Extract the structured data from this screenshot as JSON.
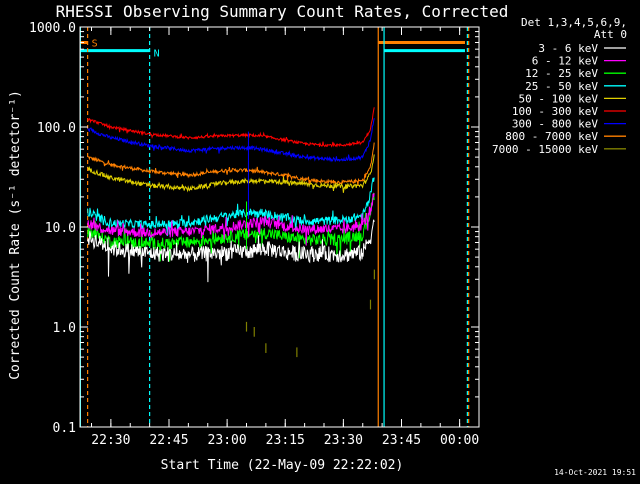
{
  "chart_data": {
    "type": "line",
    "title": "RHESSI Observing Summary Count Rates, Corrected",
    "xlabel": "Start Time (22-May-09 22:22:02)",
    "ylabel": "Corrected Count Rate (s⁻¹ detector⁻¹)",
    "y_scale": "log",
    "ylim": [
      0.1,
      1000
    ],
    "xlim": [
      "22:22:02",
      "00:05:00"
    ],
    "y_tick_labels": [
      "0.1",
      "1.0",
      "10.0",
      "100.0",
      "1000.0"
    ],
    "x_tick_labels": [
      "22:30",
      "22:45",
      "23:00",
      "23:15",
      "23:30",
      "23:45",
      "00:00"
    ],
    "grid": false,
    "legend_position": "right",
    "legend_header": [
      "Det 1,3,4,5,6,9,",
      "Att 0"
    ],
    "timestamp": "14-Oct-2021 19:51",
    "flag_labels": {
      "saa": "S",
      "night": "N"
    },
    "series": [
      {
        "name": "3 - 6 keV",
        "color": "#ffffff",
        "points": [
          [
            "22:24:00",
            8
          ],
          [
            "22:30:00",
            6.2
          ],
          [
            "22:40:00",
            5.5
          ],
          [
            "22:50:00",
            5.3
          ],
          [
            "22:55:00",
            5.5
          ],
          [
            "23:00:00",
            5.6
          ],
          [
            "23:06:00",
            5.8
          ],
          [
            "23:10:00",
            6.2
          ],
          [
            "23:15:00",
            5.6
          ],
          [
            "23:20:00",
            5.4
          ],
          [
            "23:25:00",
            5.5
          ],
          [
            "23:30:00",
            5.3
          ],
          [
            "23:35:00",
            5.6
          ],
          [
            "23:37:00",
            8
          ],
          [
            "23:38:00",
            12
          ]
        ]
      },
      {
        "name": "6 - 12 keV",
        "color": "#ff00ff",
        "points": [
          [
            "22:24:00",
            11
          ],
          [
            "22:30:00",
            9.2
          ],
          [
            "22:40:00",
            8.8
          ],
          [
            "22:50:00",
            9.0
          ],
          [
            "22:55:00",
            9.5
          ],
          [
            "23:00:00",
            10
          ],
          [
            "23:06:00",
            11
          ],
          [
            "23:10:00",
            11.5
          ],
          [
            "23:15:00",
            10.2
          ],
          [
            "23:20:00",
            9.5
          ],
          [
            "23:25:00",
            9.6
          ],
          [
            "23:30:00",
            9.5
          ],
          [
            "23:35:00",
            10.5
          ],
          [
            "23:37:00",
            15
          ],
          [
            "23:38:00",
            22
          ]
        ]
      },
      {
        "name": "12 - 25 keV",
        "color": "#00ff00",
        "points": [
          [
            "22:24:00",
            9
          ],
          [
            "22:30:00",
            7.2
          ],
          [
            "22:40:00",
            6.8
          ],
          [
            "22:50:00",
            7.0
          ],
          [
            "22:55:00",
            7.5
          ],
          [
            "23:00:00",
            8
          ],
          [
            "23:06:00",
            8.5
          ],
          [
            "23:10:00",
            8.8
          ],
          [
            "23:15:00",
            8.0
          ],
          [
            "23:20:00",
            7.5
          ],
          [
            "23:25:00",
            7.5
          ],
          [
            "23:30:00",
            7.6
          ],
          [
            "23:35:00",
            8.5
          ],
          [
            "23:37:00",
            14
          ],
          [
            "23:38:00",
            22
          ]
        ]
      },
      {
        "name": "25 - 50 keV",
        "color": "#00ffff",
        "points": [
          [
            "22:24:00",
            14
          ],
          [
            "22:30:00",
            11
          ],
          [
            "22:40:00",
            10.5
          ],
          [
            "22:50:00",
            11
          ],
          [
            "22:55:00",
            12
          ],
          [
            "23:00:00",
            13
          ],
          [
            "23:06:00",
            14
          ],
          [
            "23:10:00",
            13.5
          ],
          [
            "23:15:00",
            12.5
          ],
          [
            "23:20:00",
            11.5
          ],
          [
            "23:25:00",
            11.5
          ],
          [
            "23:30:00",
            11.8
          ],
          [
            "23:35:00",
            13
          ],
          [
            "23:37:00",
            20
          ],
          [
            "23:38:00",
            35
          ]
        ]
      },
      {
        "name": "50 - 100 keV",
        "color": "#e0d000",
        "points": [
          [
            "22:24:00",
            38
          ],
          [
            "22:30:00",
            31
          ],
          [
            "22:40:00",
            26
          ],
          [
            "22:50:00",
            24
          ],
          [
            "22:55:00",
            26
          ],
          [
            "23:00:00",
            28
          ],
          [
            "23:06:00",
            29
          ],
          [
            "23:10:00",
            29
          ],
          [
            "23:15:00",
            28
          ],
          [
            "23:20:00",
            27
          ],
          [
            "23:25:00",
            26
          ],
          [
            "23:30:00",
            25.5
          ],
          [
            "23:35:00",
            26
          ],
          [
            "23:37:00",
            34
          ],
          [
            "23:38:00",
            55
          ]
        ]
      },
      {
        "name": "100 - 300 keV",
        "color": "#ff0000",
        "points": [
          [
            "22:24:00",
            120
          ],
          [
            "22:30:00",
            100
          ],
          [
            "22:40:00",
            85
          ],
          [
            "22:50:00",
            78
          ],
          [
            "22:55:00",
            80
          ],
          [
            "23:00:00",
            82
          ],
          [
            "23:06:00",
            83
          ],
          [
            "23:10:00",
            80
          ],
          [
            "23:15:00",
            74
          ],
          [
            "23:20:00",
            68
          ],
          [
            "23:25:00",
            66
          ],
          [
            "23:30:00",
            66
          ],
          [
            "23:35:00",
            70
          ],
          [
            "23:37:00",
            95
          ],
          [
            "23:38:00",
            160
          ]
        ]
      },
      {
        "name": "300 - 800 keV",
        "color": "#0000ff",
        "points": [
          [
            "22:24:00",
            95
          ],
          [
            "22:30:00",
            78
          ],
          [
            "22:40:00",
            65
          ],
          [
            "22:50:00",
            58
          ],
          [
            "22:55:00",
            60
          ],
          [
            "23:00:00",
            62
          ],
          [
            "23:06:00",
            62
          ],
          [
            "23:10:00",
            59
          ],
          [
            "23:15:00",
            54
          ],
          [
            "23:20:00",
            50
          ],
          [
            "23:25:00",
            48
          ],
          [
            "23:30:00",
            47
          ],
          [
            "23:35:00",
            50
          ],
          [
            "23:37:00",
            75
          ],
          [
            "23:38:00",
            130
          ]
        ]
      },
      {
        "name": "800 - 7000 keV",
        "color": "#ff8000",
        "points": [
          [
            "22:24:00",
            50
          ],
          [
            "22:30:00",
            42
          ],
          [
            "22:40:00",
            36
          ],
          [
            "22:50:00",
            33
          ],
          [
            "22:55:00",
            35
          ],
          [
            "23:00:00",
            37
          ],
          [
            "23:06:00",
            37
          ],
          [
            "23:10:00",
            35
          ],
          [
            "23:15:00",
            33
          ],
          [
            "23:20:00",
            30
          ],
          [
            "23:25:00",
            28.5
          ],
          [
            "23:30:00",
            28
          ],
          [
            "23:35:00",
            29
          ],
          [
            "23:37:00",
            40
          ],
          [
            "23:38:00",
            70
          ]
        ]
      },
      {
        "name": "7000 - 15000 keV",
        "color": "#808000",
        "points": [
          [
            "23:05:00",
            0.9
          ],
          [
            "23:07:00",
            0.8
          ],
          [
            "23:10:00",
            0.55
          ],
          [
            "23:18:00",
            0.5
          ],
          [
            "23:37:00",
            1.5
          ],
          [
            "23:38:00",
            3
          ]
        ]
      }
    ]
  }
}
